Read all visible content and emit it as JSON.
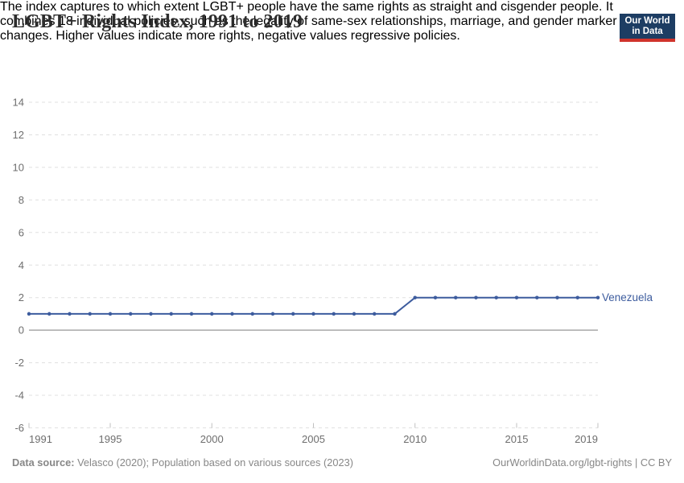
{
  "header": {
    "title": "LGBT+ Rights Index, 1991 to 2019",
    "subtitle_lines": [
      "The index captures to which extent LGBT+ people have the same rights as straight and cisgender people. It",
      "combines 18 individual policies, such as the legality of same-sex relationships, marriage, and gender marker",
      "changes. Higher values indicate more rights, negative values regressive policies."
    ],
    "logo": {
      "line1": "Our World",
      "line2": "in Data",
      "navy": "#1d3d63",
      "red": "#d0342c"
    }
  },
  "chart_data": {
    "type": "line",
    "title": "LGBT+ Rights Index, 1991 to 2019",
    "xlabel": "",
    "ylabel": "",
    "xlim": [
      1991,
      2019
    ],
    "ylim": [
      -6,
      14
    ],
    "xticks": [
      1991,
      1995,
      2000,
      2005,
      2010,
      2015,
      2019
    ],
    "yticks": [
      -6,
      -4,
      -2,
      0,
      2,
      4,
      6,
      8,
      10,
      12,
      14
    ],
    "grid": "horizontal-dashed",
    "zero_line": true,
    "legend_position": "end-of-line-label",
    "x": [
      1991,
      1992,
      1993,
      1994,
      1995,
      1996,
      1997,
      1998,
      1999,
      2000,
      2001,
      2002,
      2003,
      2004,
      2005,
      2006,
      2007,
      2008,
      2009,
      2010,
      2011,
      2012,
      2013,
      2014,
      2015,
      2016,
      2017,
      2018,
      2019
    ],
    "series": [
      {
        "name": "Venezuela",
        "color": "#3d5c9e",
        "values": [
          1,
          1,
          1,
          1,
          1,
          1,
          1,
          1,
          1,
          1,
          1,
          1,
          1,
          1,
          1,
          1,
          1,
          1,
          1,
          2,
          2,
          2,
          2,
          2,
          2,
          2,
          2,
          2,
          2
        ]
      }
    ],
    "style": {
      "grid_color": "#e0e0e0",
      "zero_line_color": "#a8a8a8",
      "axis_label_color": "#6e6e6e",
      "tick_color": "#c0c0c0"
    }
  },
  "footer": {
    "source_label": "Data source:",
    "source_text": "Velasco (2020); Population based on various sources (2023)",
    "credit": "OurWorldinData.org/lgbt-rights | CC BY"
  }
}
